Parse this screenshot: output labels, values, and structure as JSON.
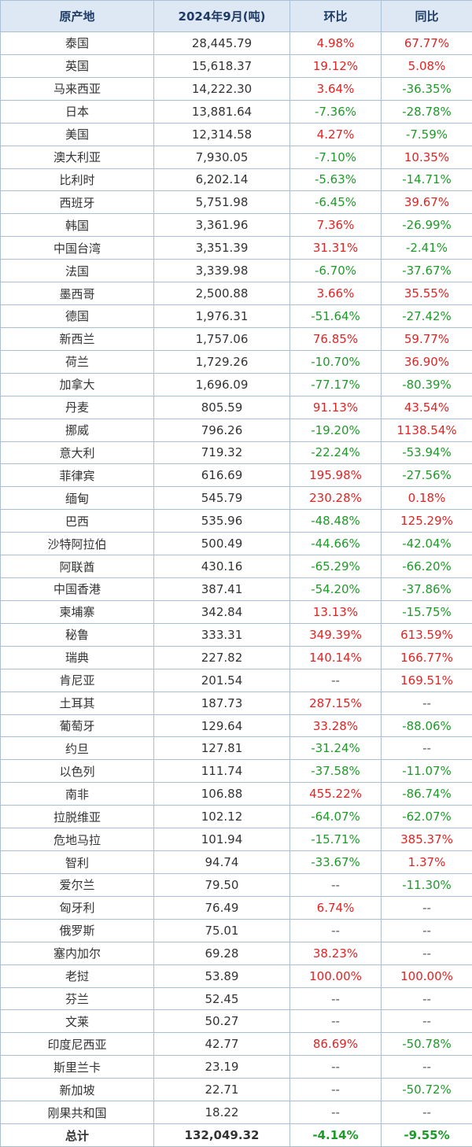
{
  "table": {
    "header": [
      "原产地",
      "2024年9月(吨)",
      "环比",
      "同比"
    ],
    "rows": [
      [
        "泰国",
        "28,445.79",
        "4.98%",
        "67.77%"
      ],
      [
        "英国",
        "15,618.37",
        "19.12%",
        "5.08%"
      ],
      [
        "马来西亚",
        "14,222.30",
        "3.64%",
        "-36.35%"
      ],
      [
        "日本",
        "13,881.64",
        "-7.36%",
        "-28.78%"
      ],
      [
        "美国",
        "12,314.58",
        "4.27%",
        "-7.59%"
      ],
      [
        "澳大利亚",
        "7,930.05",
        "-7.10%",
        "10.35%"
      ],
      [
        "比利时",
        "6,202.14",
        "-5.63%",
        "-14.71%"
      ],
      [
        "西班牙",
        "5,751.98",
        "-6.45%",
        "39.67%"
      ],
      [
        "韩国",
        "3,361.96",
        "7.36%",
        "-26.99%"
      ],
      [
        "中国台湾",
        "3,351.39",
        "31.31%",
        "-2.41%"
      ],
      [
        "法国",
        "3,339.98",
        "-6.70%",
        "-37.67%"
      ],
      [
        "墨西哥",
        "2,500.88",
        "3.66%",
        "35.55%"
      ],
      [
        "德国",
        "1,976.31",
        "-51.64%",
        "-27.42%"
      ],
      [
        "新西兰",
        "1,757.06",
        "76.85%",
        "59.77%"
      ],
      [
        "荷兰",
        "1,729.26",
        "-10.70%",
        "36.90%"
      ],
      [
        "加拿大",
        "1,696.09",
        "-77.17%",
        "-80.39%"
      ],
      [
        "丹麦",
        "805.59",
        "91.13%",
        "43.54%"
      ],
      [
        "挪威",
        "796.26",
        "-19.20%",
        "1138.54%"
      ],
      [
        "意大利",
        "719.32",
        "-22.24%",
        "-53.94%"
      ],
      [
        "菲律宾",
        "616.69",
        "195.98%",
        "-27.56%"
      ],
      [
        "缅甸",
        "545.79",
        "230.28%",
        "0.18%"
      ],
      [
        "巴西",
        "535.96",
        "-48.48%",
        "125.29%"
      ],
      [
        "沙特阿拉伯",
        "500.49",
        "-44.66%",
        "-42.04%"
      ],
      [
        "阿联酋",
        "430.16",
        "-65.29%",
        "-66.20%"
      ],
      [
        "中国香港",
        "387.41",
        "-54.20%",
        "-37.86%"
      ],
      [
        "柬埔寨",
        "342.84",
        "13.13%",
        "-15.75%"
      ],
      [
        "秘鲁",
        "333.31",
        "349.39%",
        "613.59%"
      ],
      [
        "瑞典",
        "227.82",
        "140.14%",
        "166.77%"
      ],
      [
        "肯尼亚",
        "201.54",
        "--",
        "169.51%"
      ],
      [
        "土耳其",
        "187.73",
        "287.15%",
        "--"
      ],
      [
        "葡萄牙",
        "129.64",
        "33.28%",
        "-88.06%"
      ],
      [
        "约旦",
        "127.81",
        "-31.24%",
        "--"
      ],
      [
        "以色列",
        "111.74",
        "-37.58%",
        "-11.07%"
      ],
      [
        "南非",
        "106.88",
        "455.22%",
        "-86.74%"
      ],
      [
        "拉脱维亚",
        "102.12",
        "-64.07%",
        "-62.07%"
      ],
      [
        "危地马拉",
        "101.94",
        "-15.71%",
        "385.37%"
      ],
      [
        "智利",
        "94.74",
        "-33.67%",
        "1.37%"
      ],
      [
        "爱尔兰",
        "79.50",
        "--",
        "-11.30%"
      ],
      [
        "匈牙利",
        "76.49",
        "6.74%",
        "--"
      ],
      [
        "俄罗斯",
        "75.01",
        "--",
        "--"
      ],
      [
        "塞内加尔",
        "69.28",
        "38.23%",
        "--"
      ],
      [
        "老挝",
        "53.89",
        "100.00%",
        "100.00%"
      ],
      [
        "芬兰",
        "52.45",
        "--",
        "--"
      ],
      [
        "文莱",
        "50.27",
        "--",
        "--"
      ],
      [
        "印度尼西亚",
        "42.77",
        "86.69%",
        "-50.78%"
      ],
      [
        "斯里兰卡",
        "23.19",
        "--",
        "--"
      ],
      [
        "新加坡",
        "22.71",
        "--",
        "-50.72%"
      ],
      [
        "刚果共和国",
        "18.22",
        "--",
        "--"
      ]
    ],
    "total": [
      "总计",
      "132,049.32",
      "-4.14%",
      "-9.55%"
    ]
  }
}
